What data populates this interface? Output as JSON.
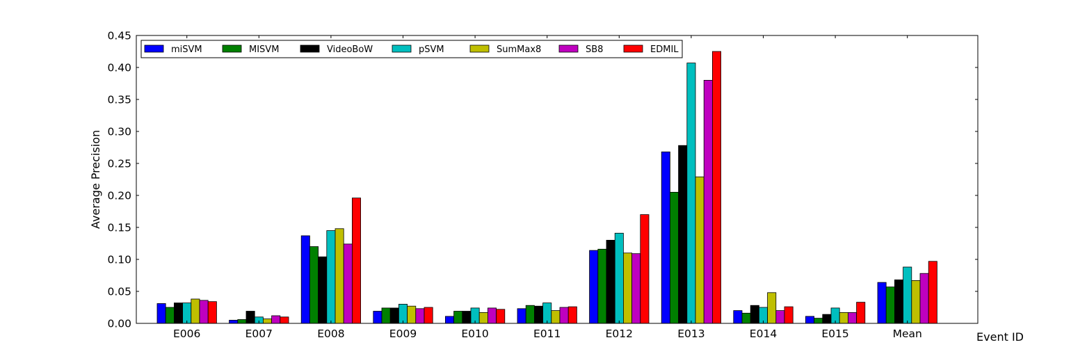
{
  "chart_data": {
    "type": "bar",
    "xlabel": "Event ID",
    "ylabel": "Average Precision",
    "ylim": [
      0,
      0.45
    ],
    "yticks": [
      "0.00",
      "0.05",
      "0.10",
      "0.15",
      "0.20",
      "0.25",
      "0.30",
      "0.35",
      "0.40",
      "0.45"
    ],
    "categories": [
      "E006",
      "E007",
      "E008",
      "E009",
      "E010",
      "E011",
      "E012",
      "E013",
      "E014",
      "E015",
      "Mean"
    ],
    "legend_position": "top-left",
    "grid": false,
    "series": [
      {
        "name": "miSVM",
        "color": "#0000ff",
        "values": [
          0.031,
          0.005,
          0.137,
          0.019,
          0.011,
          0.023,
          0.114,
          0.268,
          0.02,
          0.011,
          0.064
        ]
      },
      {
        "name": "MISVM",
        "color": "#008000",
        "values": [
          0.025,
          0.006,
          0.12,
          0.024,
          0.019,
          0.028,
          0.116,
          0.205,
          0.016,
          0.008,
          0.057
        ]
      },
      {
        "name": "VideoBoW",
        "color": "#000000",
        "values": [
          0.032,
          0.019,
          0.104,
          0.024,
          0.019,
          0.027,
          0.13,
          0.278,
          0.028,
          0.014,
          0.068
        ]
      },
      {
        "name": "pSVM",
        "color": "#00bfbf",
        "values": [
          0.032,
          0.01,
          0.145,
          0.03,
          0.024,
          0.032,
          0.141,
          0.407,
          0.025,
          0.024,
          0.088
        ]
      },
      {
        "name": "SumMax8",
        "color": "#bfbf00",
        "values": [
          0.038,
          0.007,
          0.148,
          0.027,
          0.017,
          0.02,
          0.11,
          0.229,
          0.048,
          0.017,
          0.067
        ]
      },
      {
        "name": "SB8",
        "color": "#bf00bf",
        "values": [
          0.036,
          0.012,
          0.124,
          0.023,
          0.024,
          0.025,
          0.109,
          0.38,
          0.02,
          0.017,
          0.078
        ]
      },
      {
        "name": "EDMIL",
        "color": "#ff0000",
        "values": [
          0.034,
          0.01,
          0.196,
          0.025,
          0.022,
          0.026,
          0.17,
          0.425,
          0.026,
          0.033,
          0.097
        ]
      }
    ]
  }
}
